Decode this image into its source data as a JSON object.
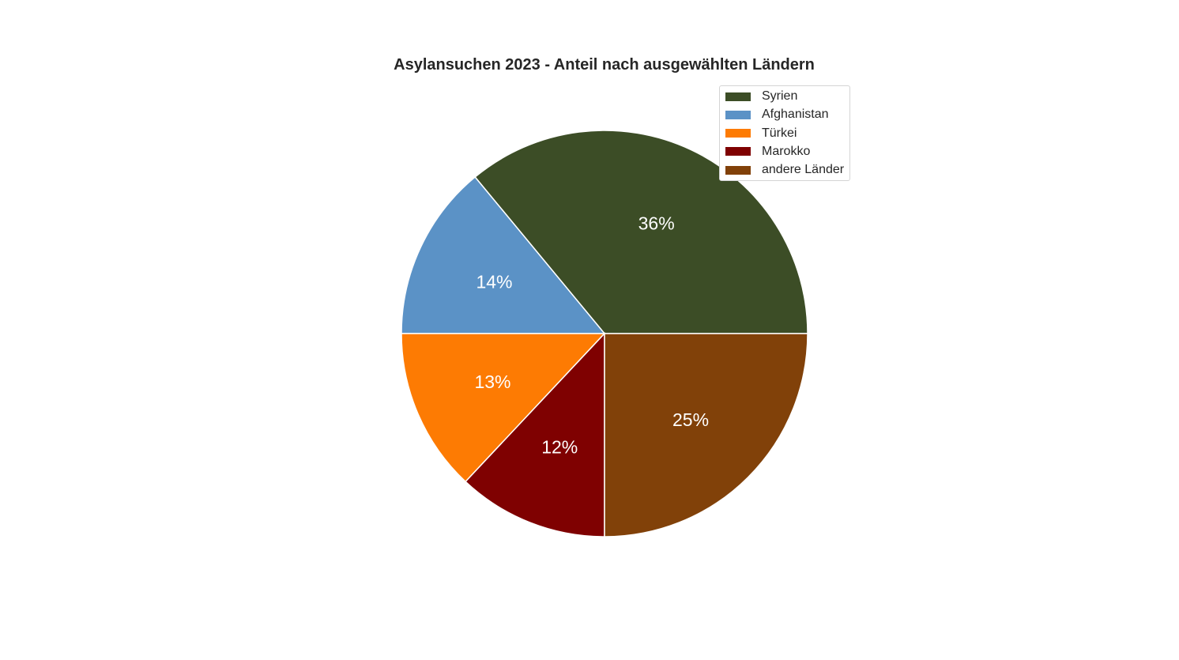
{
  "chart_data": {
    "type": "pie",
    "title": "Asylansuchen 2023 - Anteil nach ausgewählten Ländern",
    "labels": [
      "Syrien",
      "Afghanistan",
      "Türkei",
      "Marokko",
      "andere Länder"
    ],
    "values": [
      36,
      14,
      13,
      12,
      25
    ],
    "value_labels": [
      "36%",
      "14%",
      "13%",
      "12%",
      "25%"
    ],
    "colors": [
      "#3c4d26",
      "#5b92c6",
      "#fd7b03",
      "#7f0101",
      "#814109"
    ],
    "start_angle_deg": 0,
    "direction": "counterclockwise",
    "legend_position": "top-right"
  }
}
